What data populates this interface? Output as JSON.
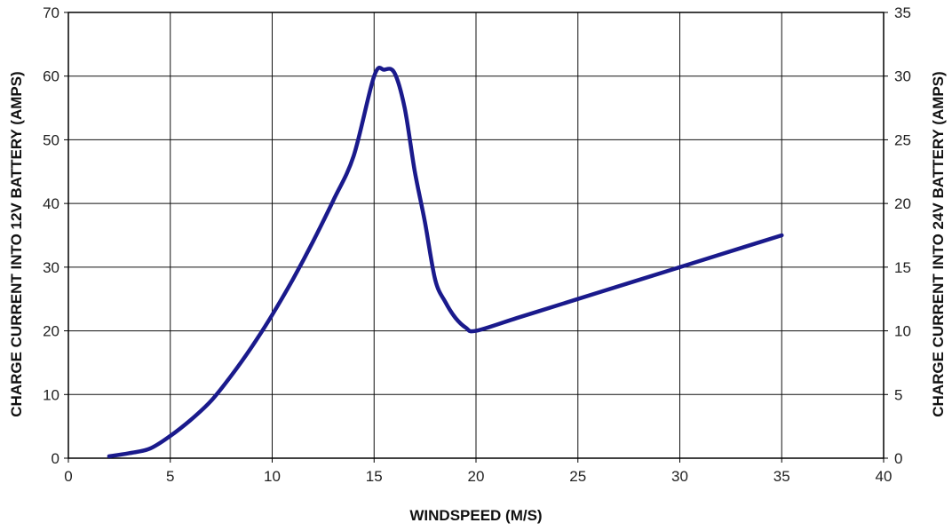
{
  "chart_data": {
    "type": "line",
    "title": "",
    "xlabel": "WINDSPEED (M/S)",
    "ylabel": "CHARGE CURRENT INTO 12V BATTERY (AMPS)",
    "y2label": "CHARGE CURRENT INTO 24V BATTERY (AMPS)",
    "xlim": [
      0,
      40
    ],
    "ylim": [
      0,
      70
    ],
    "y2lim": [
      0,
      35
    ],
    "xticks": [
      0,
      5,
      10,
      15,
      20,
      25,
      30,
      35,
      40
    ],
    "yticks": [
      0,
      10,
      20,
      30,
      40,
      50,
      60,
      70
    ],
    "y2ticks": [
      0,
      5,
      10,
      15,
      20,
      25,
      30,
      35
    ],
    "grid": true,
    "line_color": "#1a1a8c",
    "series": [
      {
        "x": [
          2,
          3,
          4,
          5,
          6,
          7,
          8,
          9,
          10,
          11,
          12,
          13,
          14,
          15,
          15.5,
          16,
          16.5,
          17,
          17.5,
          18,
          18.5,
          19,
          19.5,
          20,
          22,
          24,
          26,
          28,
          30,
          32,
          35
        ],
        "values": [
          0.3,
          0.8,
          1.5,
          3.5,
          6,
          9,
          13,
          17.5,
          22.5,
          28,
          34,
          40.5,
          47.5,
          60,
          61,
          60.5,
          55,
          45,
          37,
          28,
          24.5,
          22,
          20.5,
          20,
          22,
          24,
          26,
          28,
          30,
          32,
          35
        ]
      }
    ]
  }
}
